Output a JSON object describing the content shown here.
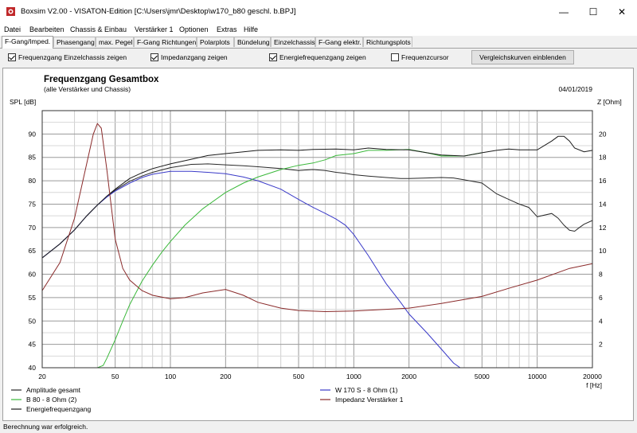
{
  "window": {
    "title": "Boxsim V2.00 - VISATON-Edition [C:\\Users\\jmr\\Desktop\\w170_b80 geschl. b.BPJ]",
    "minimize_glyph": "—",
    "maximize_glyph": "☐",
    "close_glyph": "✕"
  },
  "menu": [
    "Datei",
    "Bearbeiten",
    "Chassis & Einbau",
    "Verstärker 1",
    "Optionen",
    "Extras",
    "Hilfe"
  ],
  "tabs": [
    {
      "label": "F-Gang/Imped.",
      "active": true
    },
    {
      "label": "Phasengang",
      "active": false
    },
    {
      "label": "max. Pegel",
      "active": false
    },
    {
      "label": "F-Gang Richtungen",
      "active": false
    },
    {
      "label": "Polarplots",
      "active": false
    },
    {
      "label": "Bündelung",
      "active": false
    },
    {
      "label": "Einzelchassis",
      "active": false
    },
    {
      "label": "F-Gang elektr.",
      "active": false
    },
    {
      "label": "Richtungsplots",
      "active": false
    }
  ],
  "options": [
    {
      "label": "Frequenzgang Einzelchassis zeigen",
      "checked": true
    },
    {
      "label": "Impedanzgang zeigen",
      "checked": true
    },
    {
      "label": "Energiefrequenzgang zeigen",
      "checked": true
    },
    {
      "label": "Frequenzcursor",
      "checked": false
    }
  ],
  "compare_button": "Vergleichskurven einblenden",
  "status": "Berechnung war erfolgreich.",
  "chart_data": {
    "type": "line",
    "title": "Frequenzgang Gesamtbox",
    "subtitle": "(alle Verstärker und Chassis)",
    "date": "04/01/2019",
    "ylabel": "SPL [dB]",
    "y2label": "Z [Ohm]",
    "xlabel": "f [Hz]",
    "xscale": "log",
    "xlim": [
      20,
      20000
    ],
    "ylim": [
      40,
      95
    ],
    "y2lim": [
      0,
      22
    ],
    "grid": true,
    "xticks": [
      20,
      50,
      100,
      200,
      500,
      1000,
      2000,
      5000,
      10000,
      20000
    ],
    "xtick_labels": [
      "20",
      "50",
      "100",
      "200",
      "500",
      "1000",
      "2000",
      "5000",
      "10000",
      "20000"
    ],
    "yticks": [
      40,
      45,
      50,
      55,
      60,
      65,
      70,
      75,
      80,
      85,
      90
    ],
    "y2ticks": [
      2,
      4,
      6,
      8,
      10,
      12,
      14,
      16,
      18,
      20
    ],
    "legend_position": "bottom",
    "series": [
      {
        "name": "Amplitude gesamt",
        "axis": "left",
        "color": "#2a2a2a",
        "x": [
          20,
          25,
          30,
          35,
          40,
          45,
          50,
          60,
          70,
          80,
          100,
          130,
          160,
          200,
          250,
          300,
          400,
          500,
          600,
          700,
          800,
          900,
          1000,
          1200,
          1500,
          1800,
          2000,
          2500,
          3000,
          3500,
          4000,
          5000,
          6000,
          7000,
          8000,
          9000,
          10000,
          12000,
          13000,
          14000,
          15000,
          16000,
          17000,
          18000,
          20000
        ],
        "y": [
          63.5,
          66.5,
          69.5,
          72.5,
          74.8,
          76.6,
          78.0,
          79.9,
          81.0,
          81.8,
          82.8,
          83.5,
          83.6,
          83.4,
          83.2,
          83.0,
          82.6,
          82.2,
          82.4,
          82.2,
          81.8,
          81.6,
          81.3,
          81.0,
          80.7,
          80.5,
          80.5,
          80.6,
          80.7,
          80.6,
          80.2,
          79.5,
          77.2,
          76.0,
          75.0,
          74.3,
          72.3,
          73.0,
          72.0,
          70.5,
          69.4,
          69.2,
          70.0,
          70.7,
          71.5
        ]
      },
      {
        "name": "W 170 S - 8 Ohm (1)",
        "axis": "left",
        "color": "#3a3ac8",
        "x": [
          20,
          25,
          30,
          35,
          40,
          45,
          50,
          60,
          70,
          80,
          100,
          130,
          160,
          200,
          250,
          300,
          400,
          500,
          600,
          700,
          800,
          900,
          1000,
          1200,
          1500,
          1800,
          2000,
          2500,
          3000,
          3500,
          3800,
          4000,
          5000,
          10000,
          20000
        ],
        "y": [
          63.5,
          66.5,
          69.5,
          72.5,
          74.8,
          76.5,
          77.8,
          79.5,
          80.7,
          81.4,
          82.0,
          82.0,
          81.8,
          81.5,
          80.8,
          80.0,
          78.2,
          76.0,
          74.3,
          73.0,
          71.8,
          70.5,
          68.5,
          64.0,
          58.0,
          54.0,
          51.5,
          47.5,
          44.0,
          41.0,
          40.0,
          40.0,
          40.0,
          40.0,
          40.0
        ]
      },
      {
        "name": "B 80 - 8 Ohm (2)",
        "axis": "left",
        "color": "#3ab83a",
        "x": [
          20,
          30,
          40,
          43,
          45,
          50,
          55,
          60,
          70,
          80,
          90,
          100,
          120,
          150,
          200,
          250,
          300,
          400,
          500,
          600,
          700,
          800,
          1000,
          1200,
          1500,
          2000,
          2500,
          3000,
          4000,
          5000
        ],
        "y": [
          40.0,
          40.0,
          40.0,
          40.5,
          42.0,
          46.0,
          50.0,
          53.5,
          58.5,
          62.0,
          64.8,
          67.0,
          70.5,
          74.0,
          77.5,
          79.5,
          80.8,
          82.4,
          83.3,
          83.8,
          84.5,
          85.4,
          85.8,
          86.5,
          86.5,
          86.7,
          86.0,
          85.3,
          85.3,
          86.0
        ]
      },
      {
        "name": "Energiefrequenzgang",
        "axis": "left",
        "color": "#1a1a1a",
        "x": [
          20,
          25,
          30,
          35,
          40,
          45,
          50,
          60,
          70,
          80,
          100,
          130,
          160,
          200,
          250,
          300,
          400,
          500,
          600,
          800,
          1000,
          1200,
          1500,
          2000,
          2500,
          3000,
          4000,
          5000,
          6000,
          7000,
          8000,
          10000,
          12000,
          13000,
          14000,
          15000,
          16000,
          18000,
          20000
        ],
        "y": [
          63.5,
          66.5,
          69.5,
          72.5,
          74.8,
          76.7,
          78.2,
          80.5,
          81.7,
          82.6,
          83.6,
          84.6,
          85.4,
          85.8,
          86.2,
          86.5,
          86.6,
          86.5,
          86.7,
          86.8,
          86.6,
          87.0,
          86.7,
          86.6,
          86.0,
          85.5,
          85.3,
          86.0,
          86.5,
          86.8,
          86.6,
          86.6,
          88.5,
          89.5,
          89.5,
          88.5,
          87.0,
          86.2,
          86.5
        ]
      },
      {
        "name": "Impedanz Verstärker 1",
        "axis": "right",
        "color": "#8a2a2a",
        "x": [
          20,
          25,
          30,
          35,
          38,
          40,
          42,
          45,
          50,
          55,
          60,
          70,
          80,
          100,
          120,
          150,
          200,
          250,
          300,
          400,
          500,
          700,
          1000,
          1500,
          2000,
          3000,
          5000,
          7000,
          10000,
          15000,
          20000
        ],
        "y": [
          6.6,
          9.0,
          12.8,
          17.5,
          20.0,
          20.9,
          20.5,
          17.0,
          11.0,
          8.5,
          7.5,
          6.6,
          6.2,
          5.9,
          6.0,
          6.4,
          6.7,
          6.2,
          5.6,
          5.1,
          4.9,
          4.8,
          4.85,
          5.0,
          5.1,
          5.5,
          6.1,
          6.8,
          7.5,
          8.5,
          8.9
        ]
      }
    ]
  }
}
